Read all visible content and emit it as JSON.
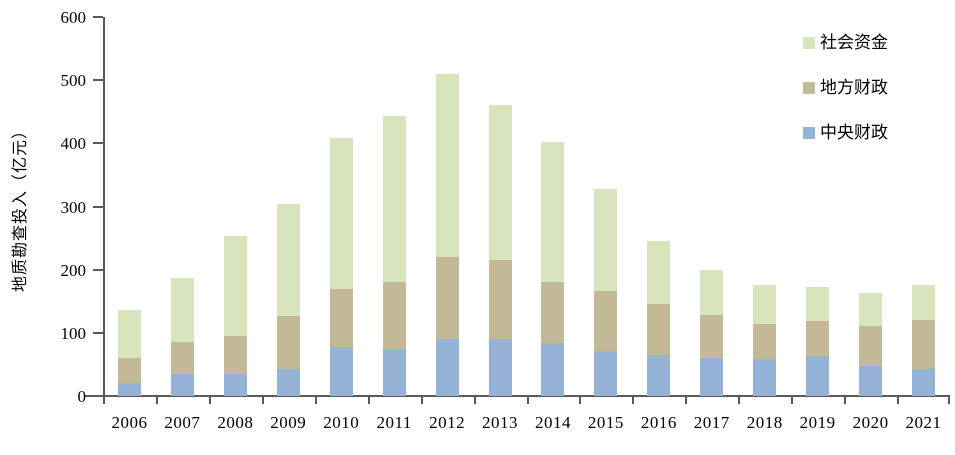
{
  "chart_data": {
    "type": "bar",
    "stacked": true,
    "title": "",
    "xlabel": "",
    "ylabel": "地质勘查投入（亿元）",
    "ylim": [
      0,
      600
    ],
    "ytick_step": 100,
    "yticks": [
      "0",
      "100",
      "200",
      "300",
      "400",
      "500",
      "600"
    ],
    "grid": false,
    "legend_position": "top-right",
    "categories": [
      "2006",
      "2007",
      "2008",
      "2009",
      "2010",
      "2011",
      "2012",
      "2013",
      "2014",
      "2015",
      "2016",
      "2017",
      "2018",
      "2019",
      "2020",
      "2021"
    ],
    "series": [
      {
        "name": "中央财政",
        "color": "#95b3d7",
        "values": [
          20,
          35,
          35,
          43,
          77,
          75,
          91,
          91,
          84,
          72,
          65,
          60,
          59,
          64,
          48,
          43
        ]
      },
      {
        "name": "地方财政",
        "color": "#c4b997",
        "values": [
          40,
          50,
          60,
          84,
          93,
          106,
          129,
          124,
          96,
          95,
          81,
          68,
          55,
          54,
          63,
          77
        ]
      },
      {
        "name": "社会资金",
        "color": "#d7e4bc",
        "values": [
          76,
          102,
          158,
          177,
          238,
          263,
          290,
          245,
          222,
          160,
          100,
          71,
          62,
          55,
          52,
          55
        ]
      }
    ],
    "legend_items": [
      {
        "label": "社会资金",
        "color": "#d7e4bc"
      },
      {
        "label": "地方财政",
        "color": "#c4b997"
      },
      {
        "label": "中央财政",
        "color": "#95b3d7"
      }
    ],
    "axis_color": "#595959",
    "text_color": "#000000"
  }
}
